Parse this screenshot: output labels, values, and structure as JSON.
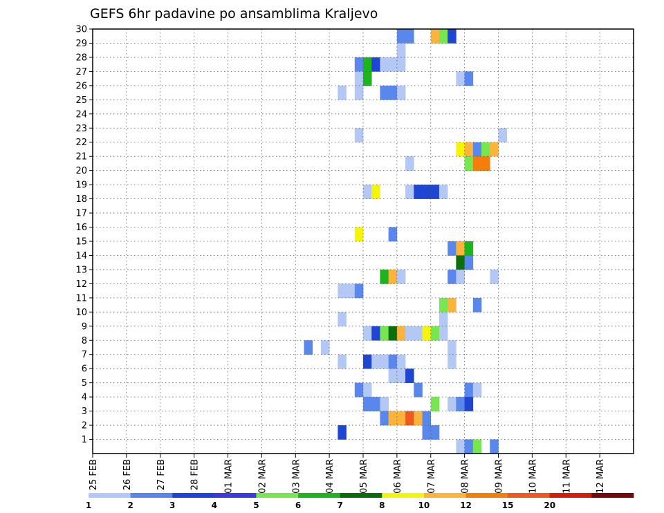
{
  "chart_data": {
    "type": "heatmap",
    "title": "GEFS 6hr padavine po ansamblima Kraljevo",
    "xlabel": "",
    "ylabel": "",
    "x_tick_labels": [
      "25 FEB",
      "26 FEB",
      "27 FEB",
      "28 FEB",
      "01 MAR",
      "02 MAR",
      "03 MAR",
      "04 MAR",
      "05 MAR",
      "06 MAR",
      "07 MAR",
      "08 MAR",
      "09 MAR",
      "10 MAR",
      "11 MAR",
      "12 MAR"
    ],
    "y_tick_labels": [
      "1",
      "2",
      "3",
      "4",
      "5",
      "6",
      "7",
      "8",
      "9",
      "10",
      "11",
      "12",
      "13",
      "14",
      "15",
      "16",
      "17",
      "18",
      "19",
      "20",
      "21",
      "22",
      "23",
      "24",
      "25",
      "26",
      "27",
      "28",
      "29",
      "30"
    ],
    "x_range_days": [
      0,
      16
    ],
    "y_range": [
      0,
      30
    ],
    "grid": true,
    "legend_position": "bottom",
    "colorbar": {
      "colors": [
        "#b4c8f5",
        "#5a87eb",
        "#1e46d2",
        "#3c3cdc",
        "#78e650",
        "#1eb41e",
        "#0a6e0a",
        "#f5f50a",
        "#fab43c",
        "#f57d0a",
        "#eb5a1e",
        "#d21e0a",
        "#780a0a"
      ],
      "labels": [
        "1",
        "2",
        "3",
        "4",
        "5",
        "6",
        "7",
        "8",
        "10",
        "12",
        "15",
        "20"
      ]
    },
    "cells": [
      {
        "t": 9.0,
        "m": 30,
        "v": 2
      },
      {
        "t": 9.25,
        "m": 30,
        "v": 2
      },
      {
        "t": 10.0,
        "m": 30,
        "v": 10
      },
      {
        "t": 10.25,
        "m": 30,
        "v": 5
      },
      {
        "t": 10.5,
        "m": 30,
        "v": 3
      },
      {
        "t": 9.0,
        "m": 29,
        "v": 1
      },
      {
        "t": 7.75,
        "m": 28,
        "v": 2
      },
      {
        "t": 8.0,
        "m": 28,
        "v": 6
      },
      {
        "t": 8.25,
        "m": 28,
        "v": 3
      },
      {
        "t": 8.5,
        "m": 28,
        "v": 1
      },
      {
        "t": 8.75,
        "m": 28,
        "v": 1
      },
      {
        "t": 9.0,
        "m": 28,
        "v": 1
      },
      {
        "t": 7.75,
        "m": 27,
        "v": 1
      },
      {
        "t": 8.0,
        "m": 27,
        "v": 6
      },
      {
        "t": 10.75,
        "m": 27,
        "v": 1
      },
      {
        "t": 11.0,
        "m": 27,
        "v": 2
      },
      {
        "t": 7.25,
        "m": 26,
        "v": 1
      },
      {
        "t": 7.75,
        "m": 26,
        "v": 1
      },
      {
        "t": 8.5,
        "m": 26,
        "v": 2
      },
      {
        "t": 8.75,
        "m": 26,
        "v": 2
      },
      {
        "t": 9.0,
        "m": 26,
        "v": 1
      },
      {
        "t": 7.75,
        "m": 23,
        "v": 1
      },
      {
        "t": 12.0,
        "m": 23,
        "v": 1
      },
      {
        "t": 10.75,
        "m": 22,
        "v": 8
      },
      {
        "t": 11.0,
        "m": 22,
        "v": 10
      },
      {
        "t": 11.25,
        "m": 22,
        "v": 2
      },
      {
        "t": 11.5,
        "m": 22,
        "v": 5
      },
      {
        "t": 11.75,
        "m": 22,
        "v": 10
      },
      {
        "t": 9.25,
        "m": 21,
        "v": 1
      },
      {
        "t": 11.0,
        "m": 21,
        "v": 5
      },
      {
        "t": 11.25,
        "m": 21,
        "v": 12
      },
      {
        "t": 11.5,
        "m": 21,
        "v": 12
      },
      {
        "t": 8.0,
        "m": 19,
        "v": 1
      },
      {
        "t": 8.25,
        "m": 19,
        "v": 8
      },
      {
        "t": 9.25,
        "m": 19,
        "v": 1
      },
      {
        "t": 9.5,
        "m": 19,
        "v": 3
      },
      {
        "t": 9.75,
        "m": 19,
        "v": 3
      },
      {
        "t": 10.0,
        "m": 19,
        "v": 3
      },
      {
        "t": 10.25,
        "m": 19,
        "v": 1
      },
      {
        "t": 7.75,
        "m": 16,
        "v": 8
      },
      {
        "t": 8.75,
        "m": 16,
        "v": 2
      },
      {
        "t": 10.5,
        "m": 15,
        "v": 2
      },
      {
        "t": 10.75,
        "m": 15,
        "v": 10
      },
      {
        "t": 11.0,
        "m": 15,
        "v": 6
      },
      {
        "t": 10.75,
        "m": 14,
        "v": 7
      },
      {
        "t": 11.0,
        "m": 14,
        "v": 2
      },
      {
        "t": 8.5,
        "m": 13,
        "v": 6
      },
      {
        "t": 8.75,
        "m": 13,
        "v": 10
      },
      {
        "t": 9.0,
        "m": 13,
        "v": 1
      },
      {
        "t": 10.5,
        "m": 13,
        "v": 2
      },
      {
        "t": 10.75,
        "m": 13,
        "v": 1
      },
      {
        "t": 11.75,
        "m": 13,
        "v": 1
      },
      {
        "t": 7.25,
        "m": 12,
        "v": 1
      },
      {
        "t": 7.5,
        "m": 12,
        "v": 1
      },
      {
        "t": 7.75,
        "m": 12,
        "v": 2
      },
      {
        "t": 10.25,
        "m": 11,
        "v": 5
      },
      {
        "t": 10.5,
        "m": 11,
        "v": 10
      },
      {
        "t": 11.25,
        "m": 11,
        "v": 2
      },
      {
        "t": 7.25,
        "m": 10,
        "v": 1
      },
      {
        "t": 10.25,
        "m": 10,
        "v": 1
      },
      {
        "t": 8.0,
        "m": 9,
        "v": 1
      },
      {
        "t": 8.25,
        "m": 9,
        "v": 3
      },
      {
        "t": 8.5,
        "m": 9,
        "v": 5
      },
      {
        "t": 8.75,
        "m": 9,
        "v": 7
      },
      {
        "t": 9.0,
        "m": 9,
        "v": 10
      },
      {
        "t": 9.25,
        "m": 9,
        "v": 1
      },
      {
        "t": 9.5,
        "m": 9,
        "v": 1
      },
      {
        "t": 9.75,
        "m": 9,
        "v": 8
      },
      {
        "t": 10.0,
        "m": 9,
        "v": 5
      },
      {
        "t": 10.25,
        "m": 9,
        "v": 1
      },
      {
        "t": 6.25,
        "m": 8,
        "v": 2
      },
      {
        "t": 6.75,
        "m": 8,
        "v": 1
      },
      {
        "t": 10.5,
        "m": 8,
        "v": 1
      },
      {
        "t": 7.25,
        "m": 7,
        "v": 1
      },
      {
        "t": 8.0,
        "m": 7,
        "v": 3
      },
      {
        "t": 8.25,
        "m": 7,
        "v": 1
      },
      {
        "t": 8.5,
        "m": 7,
        "v": 1
      },
      {
        "t": 8.75,
        "m": 7,
        "v": 2
      },
      {
        "t": 9.0,
        "m": 7,
        "v": 1
      },
      {
        "t": 10.5,
        "m": 7,
        "v": 1
      },
      {
        "t": 8.75,
        "m": 6,
        "v": 1
      },
      {
        "t": 9.0,
        "m": 6,
        "v": 1
      },
      {
        "t": 9.25,
        "m": 6,
        "v": 3
      },
      {
        "t": 7.75,
        "m": 5,
        "v": 2
      },
      {
        "t": 8.0,
        "m": 5,
        "v": 1
      },
      {
        "t": 9.5,
        "m": 5,
        "v": 2
      },
      {
        "t": 11.0,
        "m": 5,
        "v": 2
      },
      {
        "t": 11.25,
        "m": 5,
        "v": 1
      },
      {
        "t": 8.0,
        "m": 4,
        "v": 2
      },
      {
        "t": 8.25,
        "m": 4,
        "v": 2
      },
      {
        "t": 8.5,
        "m": 4,
        "v": 1
      },
      {
        "t": 10.0,
        "m": 4,
        "v": 5
      },
      {
        "t": 10.5,
        "m": 4,
        "v": 1
      },
      {
        "t": 10.75,
        "m": 4,
        "v": 2
      },
      {
        "t": 11.0,
        "m": 4,
        "v": 3
      },
      {
        "t": 8.5,
        "m": 3,
        "v": 2
      },
      {
        "t": 8.75,
        "m": 3,
        "v": 10
      },
      {
        "t": 9.0,
        "m": 3,
        "v": 10
      },
      {
        "t": 9.25,
        "m": 3,
        "v": 15
      },
      {
        "t": 9.5,
        "m": 3,
        "v": 10
      },
      {
        "t": 9.75,
        "m": 3,
        "v": 2
      },
      {
        "t": 7.25,
        "m": 2,
        "v": 3
      },
      {
        "t": 9.75,
        "m": 2,
        "v": 2
      },
      {
        "t": 10.0,
        "m": 2,
        "v": 2
      },
      {
        "t": 10.75,
        "m": 1,
        "v": 1
      },
      {
        "t": 11.0,
        "m": 1,
        "v": 2
      },
      {
        "t": 11.25,
        "m": 1,
        "v": 5
      },
      {
        "t": 11.75,
        "m": 1,
        "v": 2
      }
    ]
  }
}
